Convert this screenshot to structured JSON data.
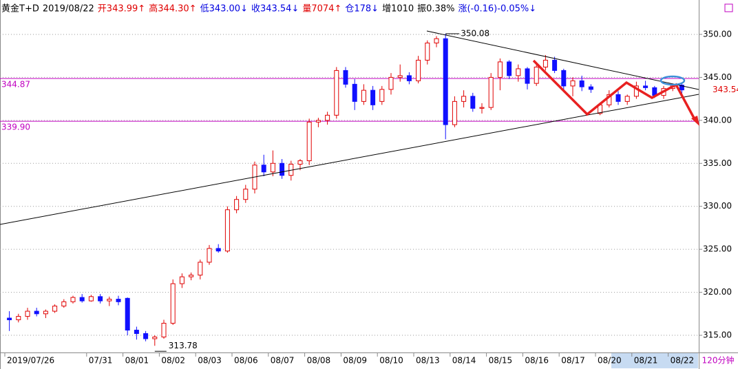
{
  "header": {
    "items": [
      {
        "text": "黄金T+D",
        "color": "#000000"
      },
      {
        "text": "2019/08/22",
        "color": "#000000"
      },
      {
        "text": "开343.99↑",
        "color": "#e00000"
      },
      {
        "text": "高344.30↑",
        "color": "#e00000"
      },
      {
        "text": "低343.00↓",
        "color": "#0000e0"
      },
      {
        "text": "收343.54↓",
        "color": "#0000e0"
      },
      {
        "text": "量7074↑",
        "color": "#e00000"
      },
      {
        "text": "仓178↓",
        "color": "#0000e0"
      },
      {
        "text": "增1010",
        "color": "#000000"
      },
      {
        "text": "振0.38%",
        "color": "#000000"
      },
      {
        "text": "涨(-0.16)-0.05%↓",
        "color": "#0000e0"
      }
    ]
  },
  "chart_data": {
    "type": "candlestick",
    "period": "120分钟",
    "up_color": "#e00000",
    "down_color": "#1010ff",
    "ylim": [
      313,
      354
    ],
    "yticks": [
      {
        "value": 315,
        "label": "315.00"
      },
      {
        "value": 320,
        "label": "320.00"
      },
      {
        "value": 325,
        "label": "325.00"
      },
      {
        "value": 330,
        "label": "330.00"
      },
      {
        "value": 335,
        "label": "335.00"
      },
      {
        "value": 340,
        "label": "340.00"
      },
      {
        "value": 345,
        "label": "345.00"
      },
      {
        "value": 350,
        "label": "350.00"
      }
    ],
    "ref_lines": [
      344.87,
      {
        "value": 339.9,
        "label": "339.90"
      }
    ],
    "ref_color": "#c000c0",
    "max_label": 350.08,
    "max_index": 48,
    "min_label": 313.78,
    "min_index": 16,
    "last": 343.54,
    "categories": [
      "2019/07/26",
      null,
      null,
      null,
      null,
      null,
      null,
      null,
      null,
      "07/31",
      null,
      null,
      null,
      "08/01",
      null,
      null,
      null,
      "08/02",
      null,
      null,
      null,
      "08/03",
      null,
      null,
      null,
      "08/06",
      null,
      null,
      null,
      "08/07",
      null,
      null,
      null,
      "08/08",
      null,
      null,
      null,
      "08/09",
      null,
      null,
      null,
      "08/10",
      null,
      null,
      null,
      "08/13",
      null,
      null,
      null,
      "08/14",
      null,
      null,
      null,
      "08/15",
      null,
      null,
      null,
      "08/16",
      null,
      null,
      null,
      "08/17",
      null,
      null,
      null,
      "08/20",
      null,
      null,
      null,
      "08/21",
      null,
      null,
      null,
      "08/22",
      null
    ],
    "ohlc": [
      [
        317,
        317.8,
        315.5,
        316.8
      ],
      [
        316.8,
        317.5,
        316.5,
        317.2
      ],
      [
        317.2,
        318.2,
        316.8,
        317.8
      ],
      [
        317.8,
        318.2,
        317.2,
        317.5
      ],
      [
        317.5,
        318,
        317,
        317.8
      ],
      [
        317.8,
        318.6,
        317.6,
        318.4
      ],
      [
        318.4,
        319.2,
        318.2,
        318.9
      ],
      [
        318.9,
        319.6,
        318.7,
        319.4
      ],
      [
        319.4,
        319.8,
        318.8,
        319
      ],
      [
        319,
        319.7,
        318.9,
        319.5
      ],
      [
        319.5,
        319.8,
        318.7,
        319
      ],
      [
        319,
        319.5,
        318.4,
        319.2
      ],
      [
        319.2,
        319.6,
        318.5,
        318.9
      ],
      [
        319.3,
        319.4,
        315,
        315.6
      ],
      [
        315.6,
        316,
        314.5,
        315.2
      ],
      [
        315.2,
        315.5,
        314.3,
        314.6
      ],
      [
        314.6,
        315,
        313.78,
        314.8
      ],
      [
        314.8,
        316.8,
        314.6,
        316.4
      ],
      [
        316.4,
        321.5,
        316.2,
        321
      ],
      [
        321,
        322.2,
        320.5,
        321.8
      ],
      [
        321.8,
        322.3,
        321.4,
        322
      ],
      [
        322,
        323.8,
        321.5,
        323.5
      ],
      [
        323.5,
        325.5,
        323.2,
        325.1
      ],
      [
        325.1,
        325.6,
        324.6,
        324.8
      ],
      [
        324.8,
        330,
        324.6,
        329.6
      ],
      [
        329.6,
        331.2,
        329.2,
        330.8
      ],
      [
        330.8,
        332.5,
        330.4,
        332
      ],
      [
        332,
        335.2,
        331.5,
        334.8
      ],
      [
        334.8,
        336,
        333.5,
        334
      ],
      [
        334,
        336.5,
        333.5,
        335
      ],
      [
        335,
        335.5,
        333.2,
        333.6
      ],
      [
        333.6,
        335.3,
        333,
        334.9
      ],
      [
        334.9,
        335.5,
        334.2,
        335.3
      ],
      [
        335.3,
        340.2,
        334.8,
        339.8
      ],
      [
        339.8,
        340.3,
        339.2,
        340
      ],
      [
        340,
        341,
        339.5,
        340.6
      ],
      [
        340.6,
        346.2,
        340.2,
        345.8
      ],
      [
        345.8,
        346.2,
        343.8,
        344.2
      ],
      [
        344.2,
        344.8,
        341.2,
        342.2
      ],
      [
        342.2,
        344.2,
        341.8,
        343.5
      ],
      [
        343.5,
        344,
        341.2,
        341.8
      ],
      [
        342.2,
        344,
        341.8,
        343.6
      ],
      [
        343.6,
        345.5,
        343,
        345
      ],
      [
        345,
        346.5,
        344.5,
        345.2
      ],
      [
        345.2,
        345.6,
        344.2,
        344.6
      ],
      [
        344.6,
        347.5,
        344.3,
        347
      ],
      [
        347,
        349.3,
        346.5,
        349
      ],
      [
        349,
        349.8,
        348.5,
        349.5
      ],
      [
        349.5,
        350.08,
        337.8,
        339.5
      ],
      [
        339.5,
        342.8,
        339.2,
        342.2
      ],
      [
        342.2,
        343.5,
        341.5,
        342.8
      ],
      [
        342.8,
        343.2,
        341,
        341.4
      ],
      [
        341.4,
        342,
        340.8,
        341.5
      ],
      [
        341.5,
        345.5,
        341.2,
        345
      ],
      [
        345,
        347.2,
        343.5,
        346.8
      ],
      [
        346.8,
        347,
        344.8,
        345.2
      ],
      [
        345.2,
        346.5,
        344.5,
        346
      ],
      [
        346,
        346.2,
        343.6,
        344.3
      ],
      [
        344.3,
        346.5,
        344,
        346.2
      ],
      [
        346.2,
        347.6,
        345.8,
        347
      ],
      [
        347,
        347.4,
        345.5,
        345.8
      ],
      [
        345.8,
        346,
        343.5,
        344
      ],
      [
        344,
        345,
        342.8,
        344.6
      ],
      [
        344.6,
        345.2,
        343.4,
        343.9
      ],
      [
        343.9,
        344.2,
        343.2,
        343.6
      ],
      [
        340.8,
        342,
        340.6,
        341.8
      ],
      [
        341.8,
        343.5,
        341.5,
        343
      ],
      [
        343,
        343.4,
        341.8,
        342.2
      ],
      [
        342.2,
        343,
        341.8,
        342.8
      ],
      [
        342.8,
        344.5,
        342.5,
        344
      ],
      [
        344,
        344.6,
        343.5,
        343.8
      ],
      [
        343.8,
        344,
        342.6,
        342.9
      ],
      [
        342.9,
        344,
        342.5,
        343.7
      ],
      [
        343.7,
        344.3,
        343.4,
        344.1
      ],
      [
        344.1,
        344.3,
        343,
        343.54
      ]
    ]
  }
}
